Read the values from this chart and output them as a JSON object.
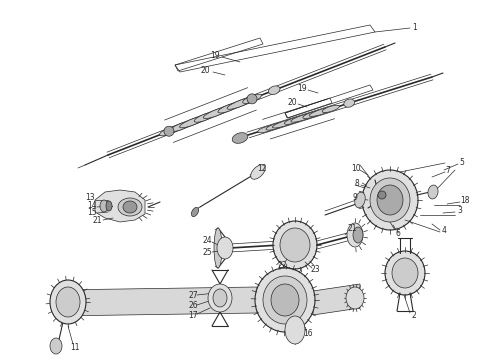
{
  "bg_color": "#ffffff",
  "line_color": "#2a2a2a",
  "fig_width": 4.9,
  "fig_height": 3.6,
  "dpi": 100,
  "label_fs": 5.5,
  "lw_main": 0.8,
  "lw_thin": 0.5,
  "lw_thick": 1.2
}
